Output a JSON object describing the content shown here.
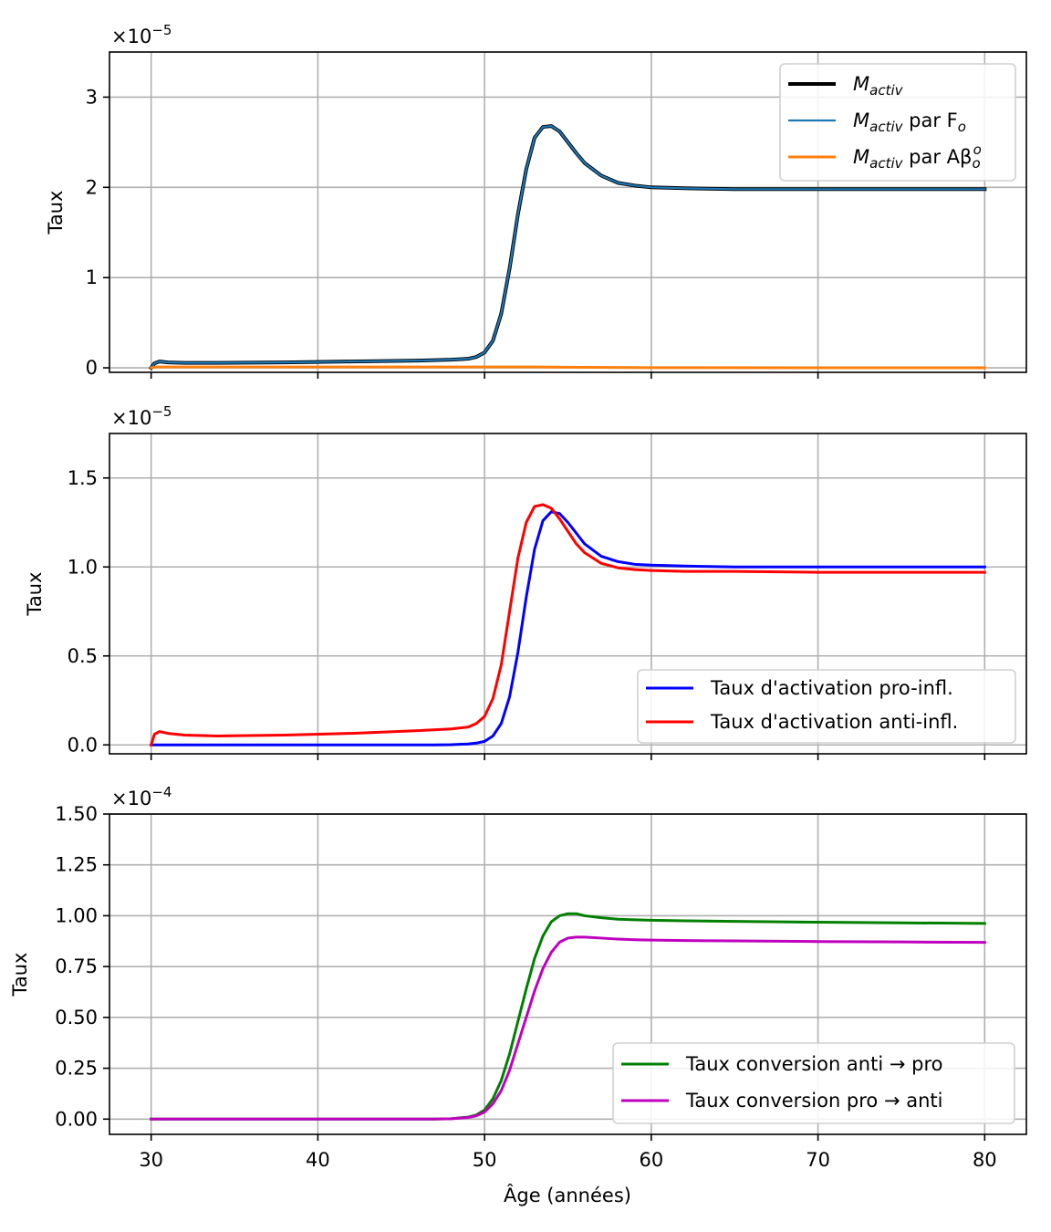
{
  "figure": {
    "xlabel": "Âge (années)"
  },
  "chart_data": [
    {
      "type": "line",
      "ylabel": "Taux",
      "exponent": -5,
      "xlim": [
        27.5,
        82.5
      ],
      "ylim": [
        -0.05,
        3.5
      ],
      "xticks": [
        30,
        40,
        50,
        60,
        70,
        80
      ],
      "yticks": [
        0,
        1,
        2,
        3
      ],
      "ytick_labels": [
        "0",
        "1",
        "2",
        "3"
      ],
      "show_xtick_labels": false,
      "grid": true,
      "legend": "upper right",
      "series": [
        {
          "name_base": "M",
          "name_sub": "activ",
          "name_suffix": "",
          "color": "#000000",
          "width": 4,
          "x": [
            30,
            30.2,
            30.5,
            31,
            32,
            34,
            38,
            42,
            46,
            48,
            49,
            49.5,
            50,
            50.5,
            51,
            51.5,
            52,
            52.5,
            53,
            53.5,
            54,
            54.5,
            55,
            55.5,
            56,
            57,
            58,
            59,
            60,
            62,
            65,
            70,
            75,
            80
          ],
          "y": [
            0.0,
            0.05,
            0.07,
            0.06,
            0.055,
            0.055,
            0.06,
            0.07,
            0.08,
            0.09,
            0.1,
            0.12,
            0.17,
            0.3,
            0.6,
            1.1,
            1.7,
            2.2,
            2.55,
            2.67,
            2.68,
            2.62,
            2.5,
            2.38,
            2.27,
            2.13,
            2.05,
            2.02,
            2.0,
            1.99,
            1.98,
            1.98,
            1.98,
            1.98
          ]
        },
        {
          "name_base": "M",
          "name_sub": "activ",
          "name_suffix": " par F",
          "name_suffix_sub": "o",
          "color": "#1f77b4",
          "width": 2.2,
          "x": [
            30,
            30.2,
            30.5,
            31,
            32,
            34,
            38,
            42,
            46,
            48,
            49,
            49.5,
            50,
            50.5,
            51,
            51.5,
            52,
            52.5,
            53,
            53.5,
            54,
            54.5,
            55,
            55.5,
            56,
            57,
            58,
            59,
            60,
            62,
            65,
            70,
            75,
            80
          ],
          "y": [
            0.0,
            0.05,
            0.07,
            0.06,
            0.055,
            0.055,
            0.06,
            0.07,
            0.08,
            0.09,
            0.1,
            0.12,
            0.17,
            0.3,
            0.6,
            1.1,
            1.7,
            2.2,
            2.55,
            2.67,
            2.68,
            2.62,
            2.5,
            2.38,
            2.27,
            2.13,
            2.05,
            2.02,
            2.0,
            1.99,
            1.98,
            1.98,
            1.98,
            1.98
          ]
        },
        {
          "name_base": "M",
          "name_sub": "activ",
          "name_suffix": " par Aβ",
          "name_suffix_sub": "o",
          "name_suffix_sup": "o",
          "color": "#ff7f0e",
          "width": 3,
          "x": [
            30,
            30.3,
            31,
            35,
            40,
            45,
            50,
            53,
            56,
            60,
            70,
            80
          ],
          "y": [
            0.0,
            0.01,
            0.01,
            0.01,
            0.01,
            0.01,
            0.01,
            0.01,
            0.005,
            0.002,
            0.001,
            0.001
          ]
        }
      ]
    },
    {
      "type": "line",
      "ylabel": "Taux",
      "exponent": -5,
      "xlim": [
        27.5,
        82.5
      ],
      "ylim": [
        -0.05,
        1.75
      ],
      "xticks": [
        30,
        40,
        50,
        60,
        70,
        80
      ],
      "yticks": [
        0,
        0.5,
        1.0,
        1.5
      ],
      "ytick_labels": [
        "0.0",
        "0.5",
        "1.0",
        "1.5"
      ],
      "show_xtick_labels": false,
      "grid": true,
      "legend": "lower right",
      "series": [
        {
          "name": "Taux d'activation pro-infl.",
          "color": "#0000ff",
          "width": 3,
          "x": [
            30,
            35,
            40,
            45,
            47,
            48,
            49,
            49.5,
            50,
            50.5,
            51,
            51.5,
            52,
            52.5,
            53,
            53.5,
            54,
            54.5,
            55,
            55.5,
            56,
            57,
            58,
            59,
            60,
            62,
            65,
            70,
            75,
            80
          ],
          "y": [
            0,
            0,
            0,
            0,
            0,
            0.001,
            0.005,
            0.01,
            0.02,
            0.05,
            0.12,
            0.27,
            0.52,
            0.83,
            1.1,
            1.26,
            1.31,
            1.3,
            1.25,
            1.19,
            1.13,
            1.06,
            1.03,
            1.015,
            1.01,
            1.005,
            1.0,
            1.0,
            1.0,
            1.0
          ]
        },
        {
          "name": "Taux d'activation anti-infl.",
          "color": "#ff0000",
          "width": 3,
          "x": [
            30,
            30.2,
            30.5,
            31,
            32,
            34,
            38,
            42,
            46,
            48,
            49,
            49.5,
            50,
            50.5,
            51,
            51.5,
            52,
            52.5,
            53,
            53.5,
            54,
            54.5,
            55,
            55.5,
            56,
            57,
            58,
            59,
            60,
            62,
            65,
            70,
            75,
            80
          ],
          "y": [
            0.0,
            0.06,
            0.075,
            0.065,
            0.055,
            0.05,
            0.055,
            0.065,
            0.08,
            0.09,
            0.1,
            0.12,
            0.16,
            0.26,
            0.45,
            0.75,
            1.05,
            1.25,
            1.34,
            1.35,
            1.33,
            1.27,
            1.2,
            1.13,
            1.08,
            1.02,
            0.995,
            0.985,
            0.98,
            0.975,
            0.975,
            0.97,
            0.97,
            0.97
          ]
        }
      ]
    },
    {
      "type": "line",
      "ylabel": "Taux",
      "exponent": -4,
      "xlim": [
        27.5,
        82.5
      ],
      "ylim": [
        -0.075,
        1.5
      ],
      "xticks": [
        30,
        40,
        50,
        60,
        70,
        80
      ],
      "xtick_labels": [
        "30",
        "40",
        "50",
        "60",
        "70",
        "80"
      ],
      "yticks": [
        0,
        0.25,
        0.5,
        0.75,
        1.0,
        1.25,
        1.5
      ],
      "ytick_labels": [
        "0.00",
        "0.25",
        "0.50",
        "0.75",
        "1.00",
        "1.25",
        "1.50"
      ],
      "show_xtick_labels": true,
      "grid": true,
      "legend": "lower right",
      "series": [
        {
          "name": "Taux conversion anti → pro",
          "color": "#008000",
          "width": 3,
          "x": [
            30,
            35,
            40,
            45,
            47,
            48,
            49,
            49.5,
            50,
            50.5,
            51,
            51.5,
            52,
            52.5,
            53,
            53.5,
            54,
            54.5,
            55,
            55.5,
            56,
            57,
            58,
            59,
            60,
            62,
            65,
            70,
            75,
            80
          ],
          "y": [
            0,
            0,
            0,
            0,
            0,
            0.002,
            0.01,
            0.02,
            0.045,
            0.1,
            0.19,
            0.32,
            0.48,
            0.64,
            0.79,
            0.9,
            0.97,
            1.0,
            1.01,
            1.01,
            1.0,
            0.99,
            0.983,
            0.98,
            0.978,
            0.975,
            0.972,
            0.968,
            0.965,
            0.962
          ]
        },
        {
          "name": "Taux conversion pro → anti",
          "color": "#bf00bf",
          "width": 3,
          "x": [
            30,
            35,
            40,
            45,
            47,
            48,
            49,
            49.5,
            50,
            50.5,
            51,
            51.5,
            52,
            52.5,
            53,
            53.5,
            54,
            54.5,
            55,
            55.5,
            56,
            57,
            58,
            59,
            60,
            62,
            65,
            70,
            75,
            80
          ],
          "y": [
            0,
            0,
            0,
            0,
            0,
            0.002,
            0.008,
            0.016,
            0.035,
            0.075,
            0.14,
            0.24,
            0.37,
            0.5,
            0.63,
            0.74,
            0.82,
            0.87,
            0.89,
            0.895,
            0.895,
            0.89,
            0.885,
            0.882,
            0.88,
            0.878,
            0.876,
            0.873,
            0.871,
            0.869
          ]
        }
      ]
    }
  ]
}
